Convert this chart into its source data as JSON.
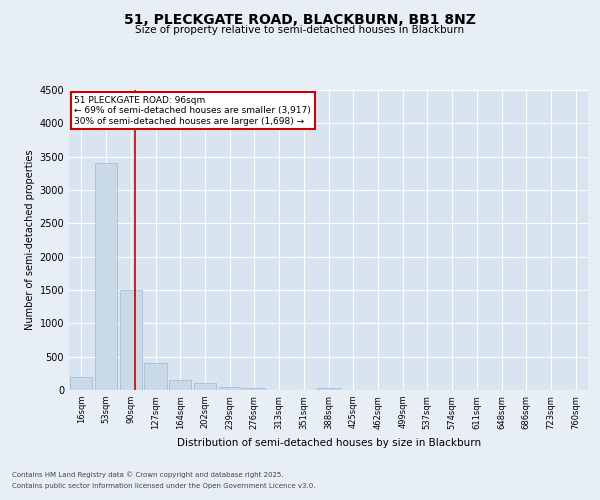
{
  "title_line1": "51, PLECKGATE ROAD, BLACKBURN, BB1 8NZ",
  "title_line2": "Size of property relative to semi-detached houses in Blackburn",
  "xlabel": "Distribution of semi-detached houses by size in Blackburn",
  "ylabel": "Number of semi-detached properties",
  "footer_line1": "Contains HM Land Registry data © Crown copyright and database right 2025.",
  "footer_line2": "Contains public sector information licensed under the Open Government Licence v3.0.",
  "bin_labels": [
    "16sqm",
    "53sqm",
    "90sqm",
    "127sqm",
    "164sqm",
    "202sqm",
    "239sqm",
    "276sqm",
    "313sqm",
    "351sqm",
    "388sqm",
    "425sqm",
    "462sqm",
    "499sqm",
    "537sqm",
    "574sqm",
    "611sqm",
    "648sqm",
    "686sqm",
    "723sqm",
    "760sqm"
  ],
  "bar_values": [
    200,
    3400,
    1500,
    400,
    150,
    100,
    50,
    30,
    5,
    5,
    30,
    2,
    0,
    0,
    0,
    0,
    0,
    0,
    0,
    0,
    0
  ],
  "bar_color": "#c9d9e8",
  "bar_edge_color": "#a0b8cc",
  "annotation_text_line1": "51 PLECKGATE ROAD: 96sqm",
  "annotation_text_line2": "← 69% of semi-detached houses are smaller (3,917)",
  "annotation_text_line3": "30% of semi-detached houses are larger (1,698) →",
  "ylim": [
    0,
    4500
  ],
  "yticks": [
    0,
    500,
    1000,
    1500,
    2000,
    2500,
    3000,
    3500,
    4000,
    4500
  ],
  "background_color": "#e8eef5",
  "plot_bg_color": "#d8e4f0",
  "grid_color": "#ffffff",
  "annotation_box_color": "#ffffff",
  "annotation_box_edge": "#cc0000",
  "red_line_color": "#cc0000"
}
